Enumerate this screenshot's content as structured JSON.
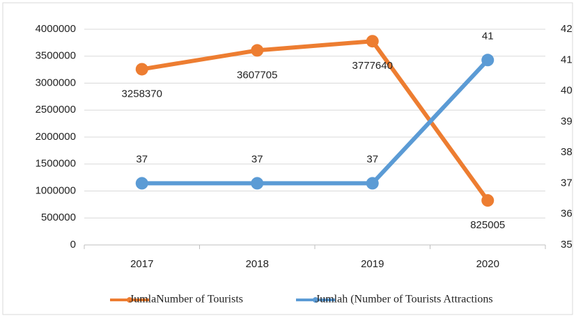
{
  "chart_data": {
    "type": "line",
    "categories": [
      "2017",
      "2018",
      "2019",
      "2020"
    ],
    "series": [
      {
        "name": "JumlaNumber of Tourists",
        "color": "#ed7d31",
        "values": [
          3258370,
          3607705,
          3777640,
          825005
        ]
      },
      {
        "name": "Jumlah (Number of Tourists Attractions",
        "color": "#5b9bd5",
        "values": [
          37,
          37,
          37,
          41
        ],
        "axis": "y2"
      }
    ],
    "ylim": [
      0,
      4000000
    ],
    "yticks": [
      0,
      500000,
      1000000,
      1500000,
      2000000,
      2500000,
      3000000,
      3500000,
      4000000
    ],
    "y2lim": [
      35,
      42
    ],
    "y2ticks": [
      35,
      36,
      37,
      38,
      39,
      40,
      41,
      42
    ],
    "grid": true,
    "legend": "bottom"
  }
}
